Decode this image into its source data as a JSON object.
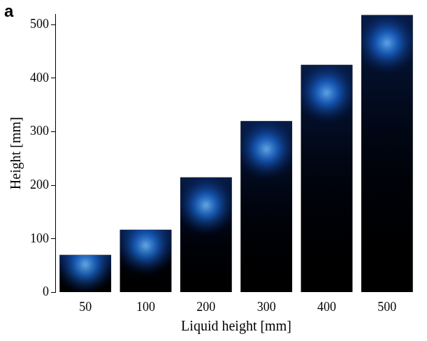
{
  "chart_data": {
    "type": "bar",
    "panel_label": "a",
    "x_label": "Liquid height [mm]",
    "y_label": "Height [mm]",
    "categories": [
      "50",
      "100",
      "200",
      "300",
      "400",
      "500"
    ],
    "values": [
      70,
      117,
      215,
      320,
      425,
      518
    ],
    "color": "#000000",
    "ylim": [
      0,
      520
    ],
    "yticks": [
      0,
      100,
      200,
      300,
      400,
      500
    ],
    "grid": false
  }
}
